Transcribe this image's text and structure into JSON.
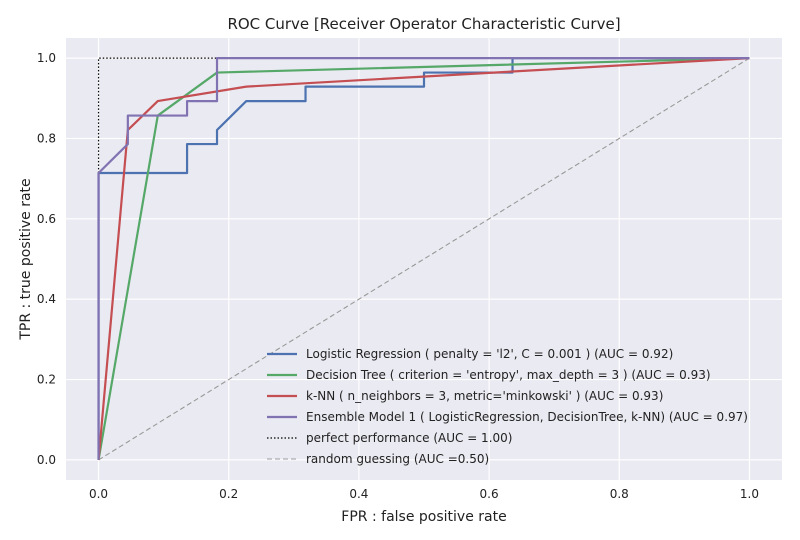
{
  "chart_data": {
    "type": "line",
    "title": "ROC Curve [Receiver Operator Characteristic Curve]",
    "xlabel": "FPR : false positive rate",
    "ylabel": "TPR : true positive rate",
    "xlim": [
      -0.05,
      1.05
    ],
    "ylim": [
      -0.05,
      1.05
    ],
    "xticks": [
      0.0,
      0.2,
      0.4,
      0.6,
      0.8,
      1.0
    ],
    "yticks": [
      0.0,
      0.2,
      0.4,
      0.6,
      0.8,
      1.0
    ],
    "xtick_labels": [
      "0.0",
      "0.2",
      "0.4",
      "0.6",
      "0.8",
      "1.0"
    ],
    "ytick_labels": [
      "0.0",
      "0.2",
      "0.4",
      "0.6",
      "0.8",
      "1.0"
    ],
    "grid": true,
    "legend_position": "lower-right",
    "series": [
      {
        "name": "Logistic Regression ( penalty = 'l2', C = 0.001 ) (AUC = 0.92)",
        "color": "#4c72b0",
        "style": "solid",
        "x": [
          0.0,
          0.0,
          0.0,
          0.136,
          0.136,
          0.182,
          0.182,
          0.227,
          0.227,
          0.318,
          0.318,
          0.5,
          0.5,
          0.636,
          0.636,
          1.0
        ],
        "y": [
          0.0,
          0.036,
          0.714,
          0.714,
          0.786,
          0.786,
          0.821,
          0.893,
          0.893,
          0.893,
          0.929,
          0.929,
          0.964,
          0.964,
          1.0,
          1.0
        ]
      },
      {
        "name": "Decision Tree ( criterion = 'entropy', max_depth = 3 ) (AUC = 0.93)",
        "color": "#55a868",
        "style": "solid",
        "x": [
          0.0,
          0.091,
          0.182,
          1.0
        ],
        "y": [
          0.0,
          0.857,
          0.964,
          1.0
        ]
      },
      {
        "name": "k-NN ( n_neighbors = 3, metric='minkowski' ) (AUC = 0.93)",
        "color": "#c44e52",
        "style": "solid",
        "x": [
          0.0,
          0.045,
          0.091,
          0.227,
          1.0
        ],
        "y": [
          0.0,
          0.821,
          0.893,
          0.929,
          1.0
        ]
      },
      {
        "name": "Ensemble Model 1 ( LogisticRegression, DecisionTree, k-NN) (AUC = 0.97)",
        "color": "#8172b2",
        "style": "solid",
        "x": [
          0.0,
          0.0,
          0.045,
          0.045,
          0.136,
          0.136,
          0.182,
          0.182,
          1.0
        ],
        "y": [
          0.0,
          0.714,
          0.786,
          0.857,
          0.857,
          0.893,
          0.893,
          1.0,
          1.0
        ]
      },
      {
        "name": "perfect performance (AUC = 1.00)",
        "color": "#000000",
        "style": "dotted",
        "x": [
          0.0,
          0.0,
          1.0
        ],
        "y": [
          0.0,
          1.0,
          1.0
        ]
      },
      {
        "name": "random guessing (AUC =0.50)",
        "color": "#999999",
        "style": "dashed",
        "x": [
          0.0,
          1.0
        ],
        "y": [
          0.0,
          1.0
        ]
      }
    ]
  }
}
